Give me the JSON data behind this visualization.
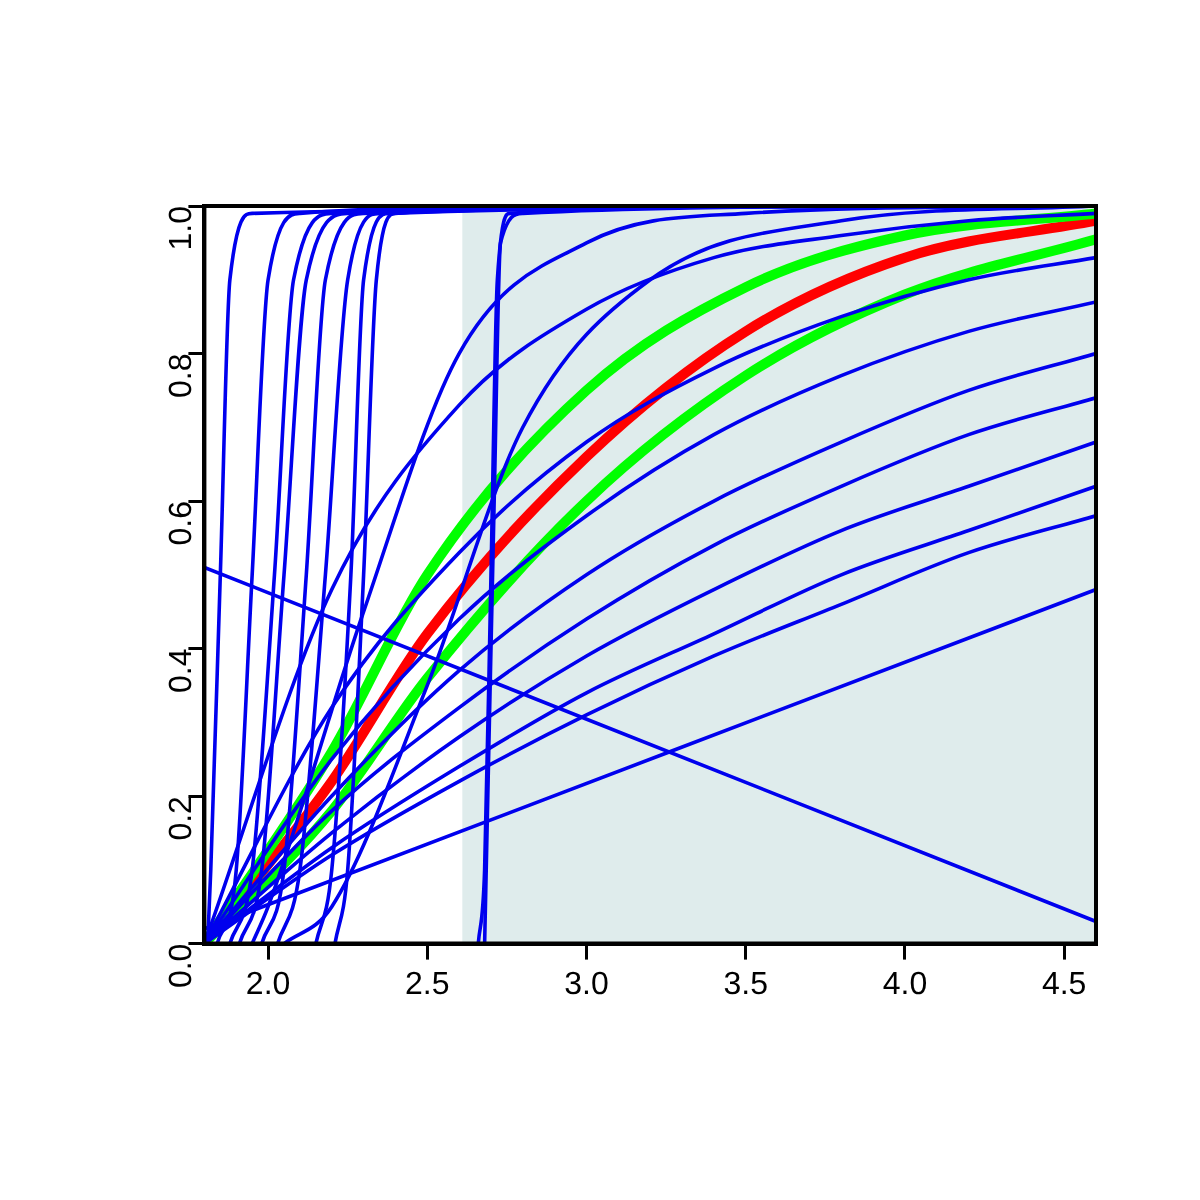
{
  "chart_data": {
    "type": "line",
    "xlim": [
      1.8,
      4.6
    ],
    "ylim": [
      0,
      1
    ],
    "xticks": [
      {
        "value": 2,
        "label": "2.0"
      },
      2.5,
      {
        "value": 3,
        "label": "3.0"
      },
      3.5,
      {
        "value": 4,
        "label": "4.0"
      },
      4.5
    ],
    "yticks": [
      {
        "value": 0,
        "label": "0.0"
      },
      0.2,
      0.4,
      0.6,
      0.8,
      {
        "value": 1,
        "label": "1.0"
      }
    ],
    "grid": false,
    "legend": false,
    "marker": "none",
    "line_style": "solid",
    "bands": [
      {
        "axis": "x",
        "from": 2.61,
        "to": 4.6,
        "color": "#dfecec"
      }
    ],
    "series": [
      {
        "color": "#0000ee",
        "x": [
          1.81,
          1.82,
          1.85,
          1.88,
          1.95,
          4.6
        ],
        "values": [
          0,
          0.1,
          0.5,
          0.9,
          0.99,
          1
        ]
      },
      {
        "color": "#0000ee",
        "x": [
          1.84,
          1.9,
          1.95,
          2.0,
          2.1,
          3.0
        ],
        "values": [
          0,
          0.1,
          0.5,
          0.9,
          0.99,
          1
        ]
      },
      {
        "color": "#0000ee",
        "x": [
          1.88,
          1.95,
          2.02,
          2.08,
          2.2,
          3.3
        ],
        "values": [
          0,
          0.1,
          0.5,
          0.9,
          0.99,
          1
        ]
      },
      {
        "color": "#0000ee",
        "x": [
          1.91,
          1.98,
          2.05,
          2.12,
          2.25,
          3.6
        ],
        "values": [
          0,
          0.1,
          0.5,
          0.9,
          0.99,
          1
        ]
      },
      {
        "color": "#0000ee",
        "x": [
          1.98,
          2.05,
          2.12,
          2.18,
          2.3,
          3.9
        ],
        "values": [
          0,
          0.1,
          0.5,
          0.9,
          0.99,
          1
        ]
      },
      {
        "color": "#0000ee",
        "x": [
          2.03,
          2.1,
          2.18,
          2.25,
          2.35,
          4.2
        ],
        "values": [
          0,
          0.1,
          0.5,
          0.9,
          0.99,
          1
        ]
      },
      {
        "color": "#0000ee",
        "x": [
          2.15,
          2.2,
          2.26,
          2.3,
          2.38,
          4.4
        ],
        "values": [
          0,
          0.1,
          0.5,
          0.9,
          0.99,
          1
        ]
      },
      {
        "color": "#0000ee",
        "x": [
          2.21,
          2.25,
          2.3,
          2.34,
          2.4,
          3.1
        ],
        "values": [
          0,
          0.1,
          0.5,
          0.9,
          0.99,
          1
        ]
      },
      {
        "color": "#0000ee",
        "x": [
          2.66,
          2.68,
          2.7,
          2.72,
          2.76,
          3.8
        ],
        "values": [
          0,
          0.1,
          0.5,
          0.9,
          0.99,
          1
        ]
      },
      {
        "color": "#0000ee",
        "x": [
          2.68,
          2.69,
          2.71,
          2.73,
          2.8,
          4.1
        ],
        "values": [
          0,
          0.2,
          0.6,
          0.95,
          0.99,
          1
        ]
      },
      {
        "color": "#0000ee",
        "x": [
          1.95,
          2.0,
          2.3,
          2.6,
          3.0,
          3.5,
          4.5
        ],
        "values": [
          0,
          0.05,
          0.45,
          0.8,
          0.95,
          0.99,
          1
        ]
      },
      {
        "color": "#0000ee",
        "x": [
          2.05,
          2.2,
          2.5,
          2.8,
          3.2,
          3.8,
          4.6
        ],
        "values": [
          0,
          0.05,
          0.35,
          0.7,
          0.9,
          0.98,
          1
        ]
      },
      {
        "color": "#0000ee",
        "x": [
          1.8,
          2.2,
          2.6,
          3.0,
          3.4,
          3.8,
          4.2,
          4.6
        ],
        "values": [
          0,
          0.48,
          0.73,
          0.86,
          0.93,
          0.96,
          0.98,
          0.99
        ]
      },
      {
        "color": "#0000ee",
        "x": [
          1.8,
          2.2,
          2.6,
          3.0,
          3.4,
          3.8,
          4.2,
          4.6
        ],
        "values": [
          0,
          0.32,
          0.53,
          0.68,
          0.78,
          0.85,
          0.9,
          0.93
        ]
      },
      {
        "color": "#0000ee",
        "x": [
          1.8,
          2.2,
          2.6,
          3.0,
          3.4,
          3.8,
          4.2,
          4.6
        ],
        "values": [
          0,
          0.25,
          0.44,
          0.58,
          0.69,
          0.77,
          0.83,
          0.87
        ]
      },
      {
        "color": "#0000ee",
        "x": [
          1.8,
          2.2,
          2.6,
          3.0,
          3.4,
          3.8,
          4.2,
          4.6
        ],
        "values": [
          0,
          0.2,
          0.37,
          0.5,
          0.6,
          0.68,
          0.75,
          0.8
        ]
      },
      {
        "color": "#0000ee",
        "x": [
          1.8,
          2.2,
          2.6,
          3.0,
          3.4,
          3.8,
          4.2,
          4.6
        ],
        "values": [
          0,
          0.18,
          0.32,
          0.44,
          0.54,
          0.62,
          0.69,
          0.74
        ]
      },
      {
        "color": "#0000ee",
        "x": [
          1.8,
          2.2,
          2.6,
          3.0,
          3.4,
          3.8,
          4.2,
          4.6
        ],
        "values": [
          0,
          0.15,
          0.28,
          0.39,
          0.48,
          0.56,
          0.62,
          0.68
        ]
      },
      {
        "color": "#0000ee",
        "x": [
          1.8,
          2.2,
          2.6,
          3.0,
          3.4,
          3.8,
          4.2,
          4.6
        ],
        "values": [
          0,
          0.13,
          0.24,
          0.34,
          0.42,
          0.5,
          0.56,
          0.62
        ]
      },
      {
        "color": "#0000ee",
        "x": [
          1.8,
          2.2,
          2.6,
          3.0,
          3.4,
          3.8,
          4.2,
          4.6
        ],
        "values": [
          0,
          0.12,
          0.22,
          0.31,
          0.39,
          0.46,
          0.53,
          0.58
        ]
      },
      {
        "color": "#0000ee",
        "x": [
          1.8,
          4.6
        ],
        "values": [
          0.51,
          0.03
        ]
      },
      {
        "color": "#0000ee",
        "x": [
          1.8,
          4.6
        ],
        "values": [
          0.02,
          0.48
        ]
      },
      {
        "color": "#00ff00",
        "x": [
          1.8,
          2.2,
          2.5,
          3.0,
          3.5,
          4.0,
          4.6
        ],
        "values": [
          0,
          0.26,
          0.5,
          0.75,
          0.89,
          0.96,
          0.99
        ]
      },
      {
        "color": "#00ff00",
        "x": [
          1.8,
          2.2,
          2.5,
          3.0,
          3.5,
          4.0,
          4.6
        ],
        "values": [
          0,
          0.18,
          0.36,
          0.6,
          0.77,
          0.88,
          0.955
        ]
      },
      {
        "color": "#ff0000",
        "x": [
          1.8,
          2.2,
          2.5,
          3.0,
          3.5,
          4.0,
          4.6
        ],
        "values": [
          0,
          0.22,
          0.42,
          0.66,
          0.83,
          0.93,
          0.98
        ]
      }
    ]
  }
}
